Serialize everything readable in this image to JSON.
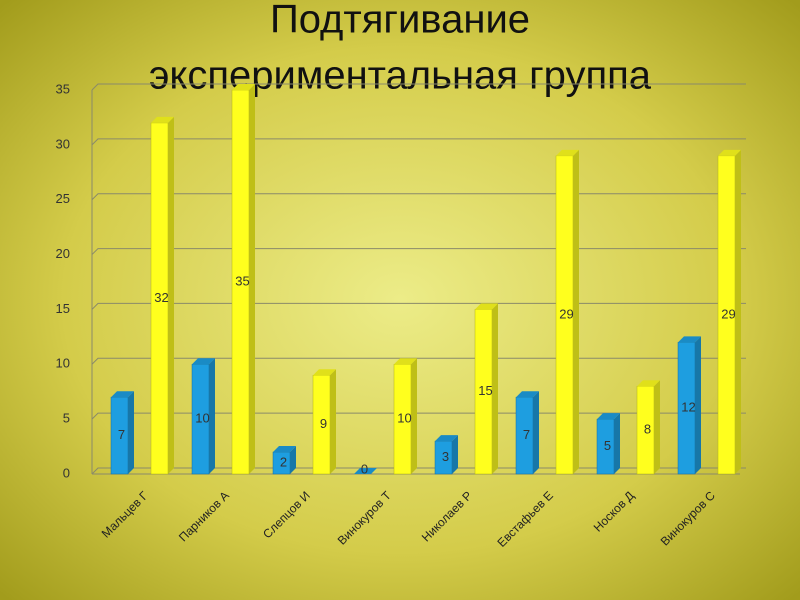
{
  "chart_data": {
    "type": "bar",
    "title": "Подтягивание",
    "subtitle": "экспериментальная группа",
    "categories": [
      "Мальцев Г",
      "Парников А",
      "Слепцов И",
      "Винокуров Т",
      "Николаев Р",
      "Евстафьев Е",
      "Носков Д",
      "Винокуров С"
    ],
    "series": [
      {
        "color": "#1e9ee0",
        "values": [
          7,
          10,
          2,
          0,
          3,
          7,
          5,
          12
        ]
      },
      {
        "color": "#ffff1e",
        "values": [
          32,
          35,
          9,
          10,
          15,
          29,
          8,
          29
        ]
      }
    ],
    "ylim": [
      0,
      35
    ],
    "yticks": [
      0,
      5,
      10,
      15,
      20,
      25,
      30,
      35
    ],
    "grid": true
  }
}
